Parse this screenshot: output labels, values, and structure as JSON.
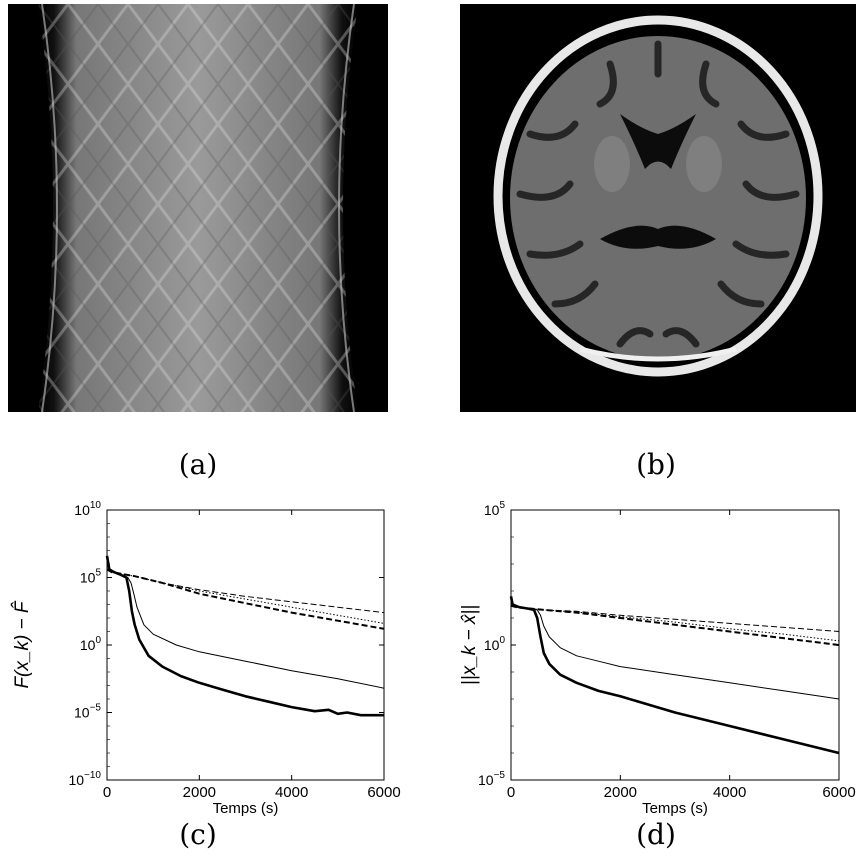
{
  "captions": {
    "a": "(a)",
    "b": "(b)",
    "c": "(c)",
    "d": "(d)"
  },
  "chart_data": [
    {
      "type": "line",
      "panel": "(c)",
      "title": "",
      "xlabel": "Temps (s)",
      "ylabel": "F(x_k) − F̂",
      "yscale": "log",
      "xlim": [
        0,
        6000
      ],
      "ylim_exp": [
        -10,
        10
      ],
      "x_ticks": [
        "0",
        "2000",
        "4000",
        "6000"
      ],
      "y_ticks": [
        {
          "base": "10",
          "exp": "10"
        },
        {
          "base": "10",
          "exp": "5"
        },
        {
          "base": "10",
          "exp": "0"
        },
        {
          "base": "10",
          "exp": "−5"
        },
        {
          "base": "10",
          "exp": "−10"
        }
      ],
      "series": [
        {
          "style": "thick-solid",
          "x": [
            0,
            50,
            150,
            300,
            420,
            480,
            540,
            600,
            700,
            900,
            1200,
            1600,
            2000,
            2500,
            3000,
            3500,
            4000,
            4500,
            4800,
            5000,
            5200,
            5500,
            6000
          ],
          "log10_y": [
            6.6,
            5.6,
            5.4,
            5.2,
            5.0,
            4.0,
            2.5,
            1.5,
            0.4,
            -0.8,
            -1.6,
            -2.3,
            -2.8,
            -3.3,
            -3.8,
            -4.2,
            -4.6,
            -4.9,
            -4.8,
            -5.1,
            -5.0,
            -5.2,
            -5.2
          ]
        },
        {
          "style": "thin-solid",
          "x": [
            0,
            50,
            150,
            300,
            450,
            520,
            580,
            650,
            800,
            1000,
            1500,
            2000,
            3000,
            4000,
            5000,
            6000
          ],
          "log10_y": [
            6.6,
            5.6,
            5.4,
            5.2,
            5.0,
            4.6,
            3.8,
            2.8,
            1.5,
            0.8,
            0.0,
            -0.5,
            -1.2,
            -1.9,
            -2.5,
            -3.2
          ]
        },
        {
          "style": "thick-dashed",
          "x": [
            0,
            100,
            600,
            1200,
            2000,
            3000,
            4000,
            5000,
            6000
          ],
          "log10_y": [
            5.6,
            5.4,
            5.1,
            4.6,
            3.8,
            3.1,
            2.4,
            1.8,
            1.2
          ]
        },
        {
          "style": "thin-dashed",
          "x": [
            0,
            100,
            600,
            1200,
            2000,
            3000,
            4000,
            5000,
            6000
          ],
          "log10_y": [
            5.6,
            5.4,
            5.1,
            4.6,
            4.1,
            3.6,
            3.2,
            2.8,
            2.4
          ]
        },
        {
          "style": "dotted",
          "x": [
            0,
            100,
            600,
            1200,
            2000,
            3000,
            4000,
            5000,
            6000
          ],
          "log10_y": [
            5.6,
            5.4,
            5.1,
            4.6,
            4.0,
            3.4,
            2.8,
            2.2,
            1.6
          ]
        }
      ]
    },
    {
      "type": "line",
      "panel": "(d)",
      "title": "",
      "xlabel": "Temps (s)",
      "ylabel": "||x_k − x̂||",
      "yscale": "log",
      "xlim": [
        0,
        6000
      ],
      "ylim_exp": [
        -5,
        5
      ],
      "x_ticks": [
        "0",
        "2000",
        "4000",
        "6000"
      ],
      "y_ticks": [
        {
          "base": "10",
          "exp": "5"
        },
        {
          "base": "10",
          "exp": "0"
        },
        {
          "base": "10",
          "exp": "−5"
        }
      ],
      "series": [
        {
          "style": "thick-solid",
          "x": [
            0,
            30,
            150,
            300,
            420,
            480,
            540,
            600,
            700,
            900,
            1200,
            1600,
            2000,
            3000,
            4000,
            5000,
            6000
          ],
          "log10_y": [
            1.8,
            1.5,
            1.4,
            1.35,
            1.3,
            1.0,
            0.3,
            -0.3,
            -0.7,
            -1.1,
            -1.4,
            -1.7,
            -1.9,
            -2.5,
            -3.0,
            -3.5,
            -4.0
          ]
        },
        {
          "style": "thin-solid",
          "x": [
            0,
            30,
            150,
            300,
            480,
            540,
            600,
            700,
            900,
            1200,
            1600,
            2000,
            3000,
            4000,
            5000,
            6000
          ],
          "log10_y": [
            1.8,
            1.5,
            1.4,
            1.35,
            1.3,
            1.1,
            0.7,
            0.3,
            -0.1,
            -0.4,
            -0.6,
            -0.8,
            -1.1,
            -1.4,
            -1.7,
            -2.0
          ]
        },
        {
          "style": "thick-dashed",
          "x": [
            0,
            100,
            600,
            1200,
            2000,
            3000,
            4000,
            5000,
            6000
          ],
          "log10_y": [
            1.45,
            1.4,
            1.3,
            1.2,
            1.0,
            0.75,
            0.5,
            0.25,
            0.0
          ]
        },
        {
          "style": "thin-dashed",
          "x": [
            0,
            100,
            600,
            1200,
            2000,
            3000,
            4000,
            5000,
            6000
          ],
          "log10_y": [
            1.45,
            1.4,
            1.3,
            1.25,
            1.1,
            0.95,
            0.8,
            0.65,
            0.5
          ]
        },
        {
          "style": "dotted",
          "x": [
            0,
            100,
            600,
            1200,
            2000,
            3000,
            4000,
            5000,
            6000
          ],
          "log10_y": [
            1.45,
            1.4,
            1.3,
            1.22,
            1.05,
            0.85,
            0.6,
            0.4,
            0.15
          ]
        }
      ]
    }
  ]
}
